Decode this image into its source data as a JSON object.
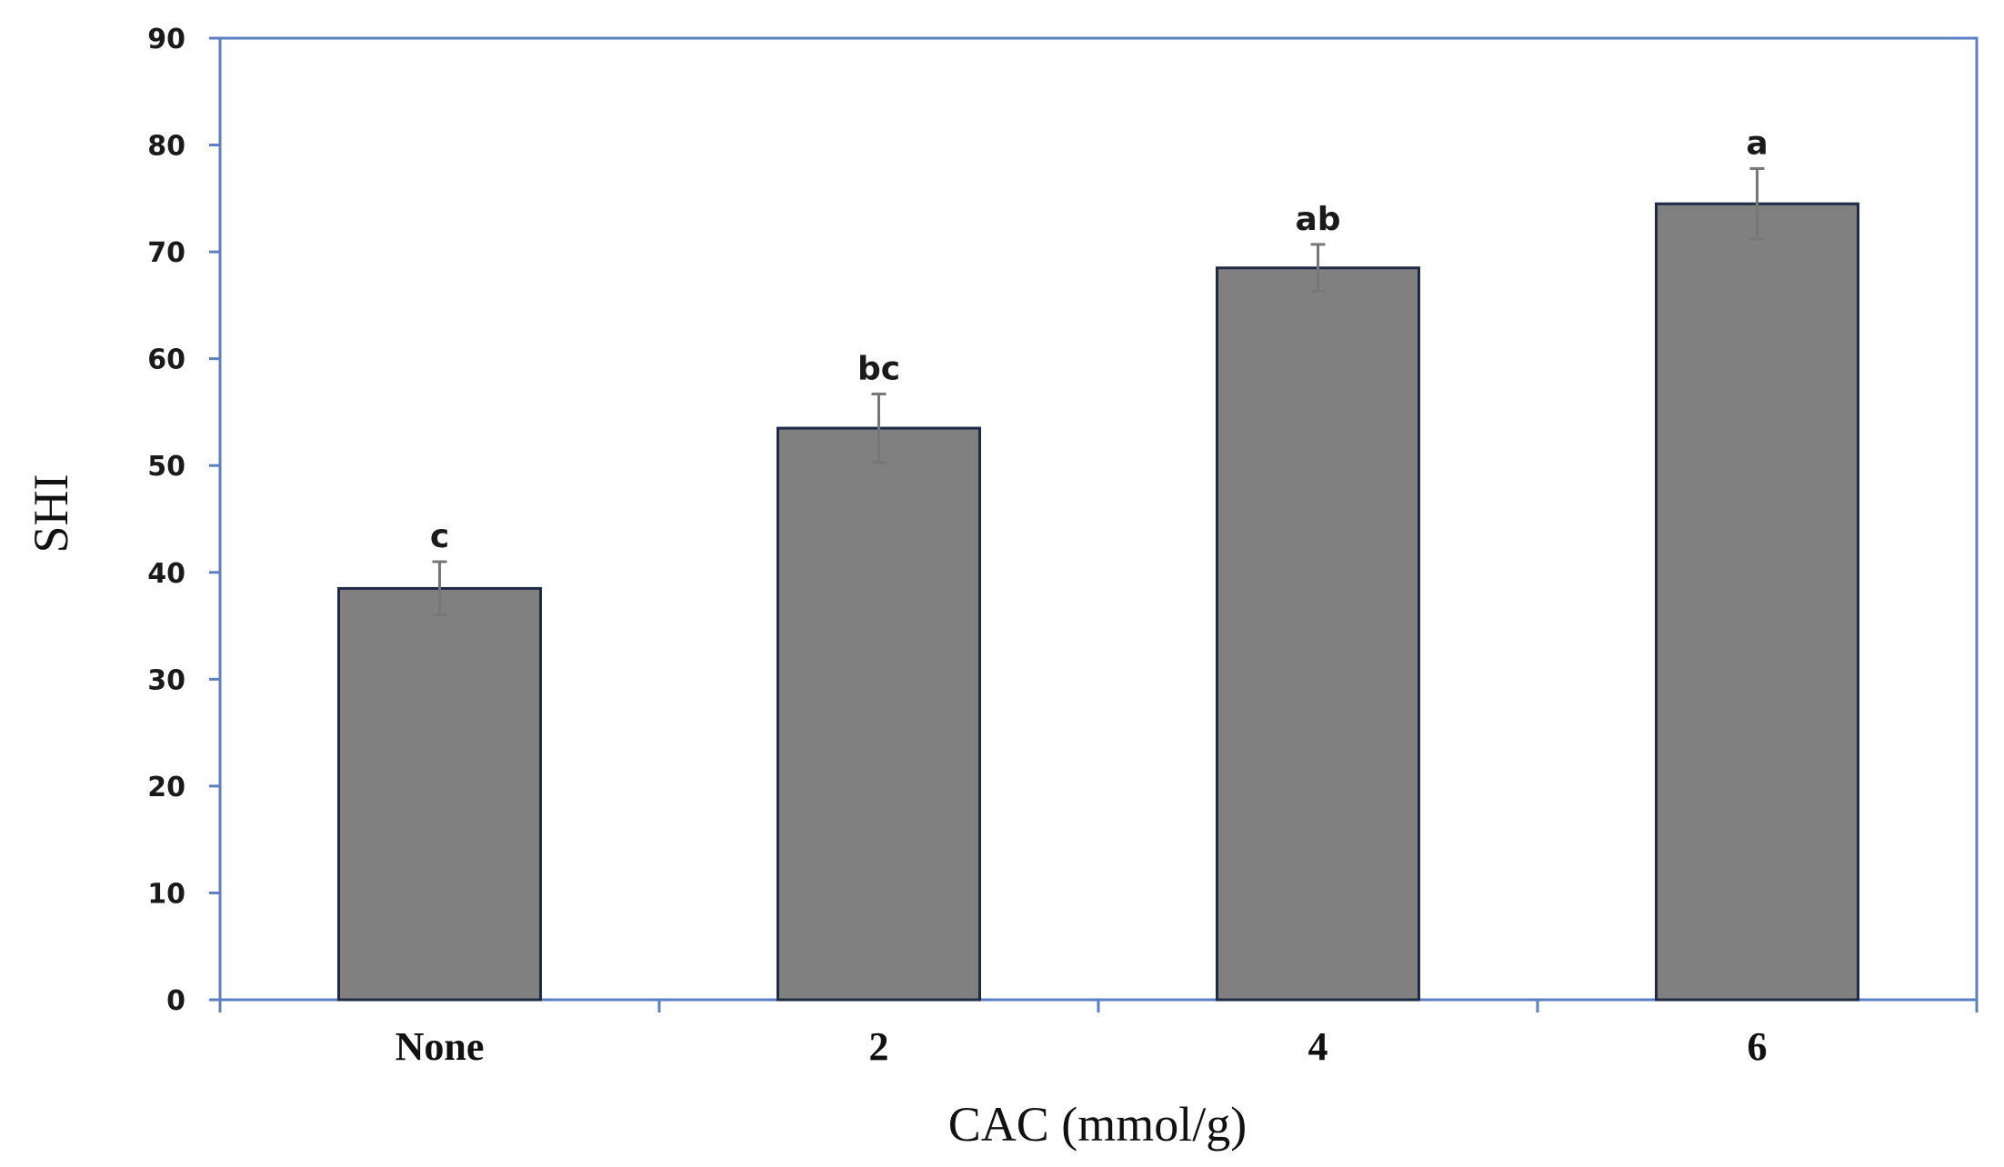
{
  "chart_data": {
    "type": "bar",
    "categories": [
      "None",
      "2",
      "4",
      "6"
    ],
    "values": [
      38.5,
      53.5,
      68.5,
      74.5
    ],
    "errors": [
      2.5,
      3.2,
      2.2,
      3.3
    ],
    "significance_labels": [
      "c",
      "bc",
      "ab",
      "a"
    ],
    "xlabel": "CAC (mmol/g)",
    "ylabel": "SHI",
    "ylim": [
      0,
      90
    ],
    "yticks": [
      0,
      10,
      20,
      30,
      40,
      50,
      60,
      70,
      80,
      90
    ],
    "grid": false,
    "colors": {
      "bar_fill": "#808080",
      "bar_stroke": "#1f2a44",
      "frame": "#5b7fc2",
      "error_bar": "#777777"
    }
  }
}
